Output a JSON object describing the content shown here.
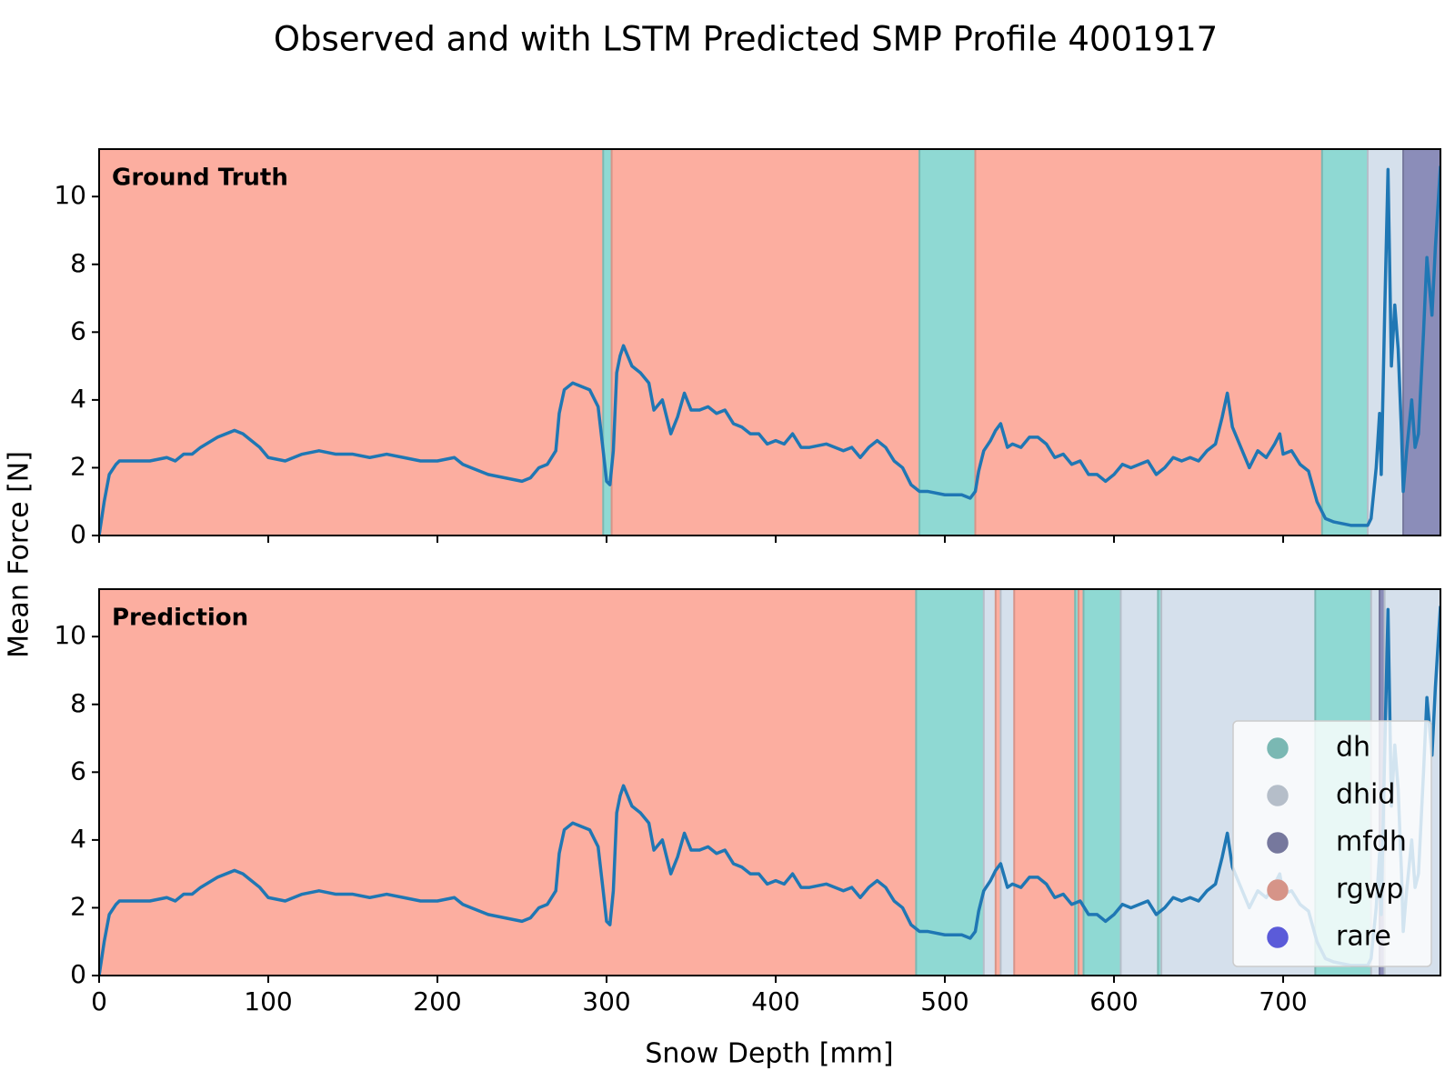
{
  "chart_data": {
    "type": "line",
    "title": "Observed and with LSTM Predicted SMP Profile 4001917",
    "x_label": "Snow Depth [mm]",
    "y_label": "Mean Force [N]",
    "xlim": [
      0,
      793
    ],
    "ylim": [
      0,
      11.4
    ],
    "xticks": [
      0,
      100,
      200,
      300,
      400,
      500,
      600,
      700
    ],
    "yticks": [
      0,
      2,
      4,
      6,
      8,
      10
    ],
    "line_color": "#1f77b4",
    "classes": [
      {
        "name": "dh",
        "color": "#8fd9d3"
      },
      {
        "name": "dhid",
        "color": "#d5e0ec"
      },
      {
        "name": "mfdh",
        "color": "#8b8db9"
      },
      {
        "name": "rgwp",
        "color": "#fcaea0"
      },
      {
        "name": "rare",
        "color": "#6b6bff"
      }
    ],
    "x": [
      0,
      3,
      6,
      10,
      12,
      20,
      30,
      40,
      45,
      50,
      55,
      60,
      70,
      80,
      85,
      90,
      95,
      100,
      110,
      120,
      130,
      140,
      150,
      160,
      170,
      180,
      190,
      200,
      210,
      215,
      220,
      230,
      240,
      250,
      255,
      260,
      265,
      270,
      272,
      275,
      280,
      285,
      290,
      295,
      298,
      300,
      302,
      304,
      306,
      308,
      310,
      315,
      320,
      325,
      328,
      333,
      338,
      342,
      346,
      350,
      355,
      360,
      365,
      370,
      375,
      380,
      385,
      390,
      395,
      400,
      405,
      410,
      415,
      420,
      430,
      440,
      445,
      450,
      455,
      460,
      465,
      470,
      475,
      480,
      485,
      490,
      500,
      510,
      515,
      518,
      520,
      523,
      527,
      530,
      533,
      537,
      540,
      545,
      550,
      555,
      560,
      565,
      570,
      575,
      580,
      585,
      590,
      595,
      600,
      605,
      610,
      615,
      620,
      625,
      630,
      635,
      640,
      645,
      650,
      655,
      660,
      664,
      667,
      670,
      675,
      680,
      685,
      690,
      695,
      698,
      700,
      705,
      710,
      715,
      720,
      725,
      730,
      740,
      750,
      752,
      755,
      757,
      758,
      760,
      762,
      764,
      766,
      768,
      770,
      771,
      773,
      776,
      778,
      780,
      783,
      785,
      788,
      790,
      793
    ],
    "values": [
      0,
      1,
      1.8,
      2.1,
      2.2,
      2.2,
      2.2,
      2.3,
      2.2,
      2.4,
      2.4,
      2.6,
      2.9,
      3.1,
      3.0,
      2.8,
      2.6,
      2.3,
      2.2,
      2.4,
      2.5,
      2.4,
      2.4,
      2.3,
      2.4,
      2.3,
      2.2,
      2.2,
      2.3,
      2.1,
      2.0,
      1.8,
      1.7,
      1.6,
      1.7,
      2.0,
      2.1,
      2.5,
      3.6,
      4.3,
      4.5,
      4.4,
      4.3,
      3.8,
      2.5,
      1.6,
      1.5,
      2.5,
      4.8,
      5.3,
      5.6,
      5.0,
      4.8,
      4.5,
      3.7,
      4.0,
      3.0,
      3.5,
      4.2,
      3.7,
      3.7,
      3.8,
      3.6,
      3.7,
      3.3,
      3.2,
      3.0,
      3.0,
      2.7,
      2.8,
      2.7,
      3.0,
      2.6,
      2.6,
      2.7,
      2.5,
      2.6,
      2.3,
      2.6,
      2.8,
      2.6,
      2.2,
      2.0,
      1.5,
      1.3,
      1.3,
      1.2,
      1.2,
      1.1,
      1.3,
      1.9,
      2.5,
      2.8,
      3.1,
      3.3,
      2.6,
      2.7,
      2.6,
      2.9,
      2.9,
      2.7,
      2.3,
      2.4,
      2.1,
      2.2,
      1.8,
      1.8,
      1.6,
      1.8,
      2.1,
      2.0,
      2.1,
      2.2,
      1.8,
      2.0,
      2.3,
      2.2,
      2.3,
      2.2,
      2.5,
      2.7,
      3.5,
      4.2,
      3.2,
      2.6,
      2.0,
      2.5,
      2.3,
      2.7,
      3.0,
      2.4,
      2.5,
      2.1,
      1.9,
      1.0,
      0.5,
      0.4,
      0.3,
      0.3,
      0.5,
      2.0,
      3.6,
      1.8,
      6.5,
      10.8,
      5.0,
      6.8,
      5.5,
      3.0,
      1.3,
      2.5,
      4.0,
      2.6,
      3.0,
      6.0,
      8.2,
      6.5,
      8.5,
      10.9
    ],
    "panels": [
      {
        "label": "Ground Truth",
        "spans": [
          {
            "start": 0,
            "end": 298,
            "class": "rgwp"
          },
          {
            "start": 298,
            "end": 303,
            "class": "dh"
          },
          {
            "start": 303,
            "end": 485,
            "class": "rgwp"
          },
          {
            "start": 485,
            "end": 518,
            "class": "dh"
          },
          {
            "start": 518,
            "end": 723,
            "class": "rgwp"
          },
          {
            "start": 723,
            "end": 750,
            "class": "dh"
          },
          {
            "start": 750,
            "end": 771,
            "class": "dhid"
          },
          {
            "start": 771,
            "end": 793,
            "class": "mfdh"
          }
        ]
      },
      {
        "label": "Prediction",
        "legend": "lower right",
        "spans": [
          {
            "start": 0,
            "end": 483,
            "class": "rgwp"
          },
          {
            "start": 483,
            "end": 523,
            "class": "dh"
          },
          {
            "start": 523,
            "end": 530,
            "class": "dhid"
          },
          {
            "start": 530,
            "end": 533,
            "class": "rgwp"
          },
          {
            "start": 533,
            "end": 541,
            "class": "dhid"
          },
          {
            "start": 541,
            "end": 577,
            "class": "rgwp"
          },
          {
            "start": 577,
            "end": 579,
            "class": "dh"
          },
          {
            "start": 579,
            "end": 582,
            "class": "rgwp"
          },
          {
            "start": 582,
            "end": 604,
            "class": "dh"
          },
          {
            "start": 604,
            "end": 626,
            "class": "dhid"
          },
          {
            "start": 626,
            "end": 628,
            "class": "dh"
          },
          {
            "start": 628,
            "end": 719,
            "class": "dhid"
          },
          {
            "start": 719,
            "end": 752,
            "class": "dh"
          },
          {
            "start": 752,
            "end": 757,
            "class": "dhid"
          },
          {
            "start": 757,
            "end": 760,
            "class": "mfdh"
          },
          {
            "start": 760,
            "end": 793,
            "class": "dhid"
          }
        ]
      }
    ]
  }
}
